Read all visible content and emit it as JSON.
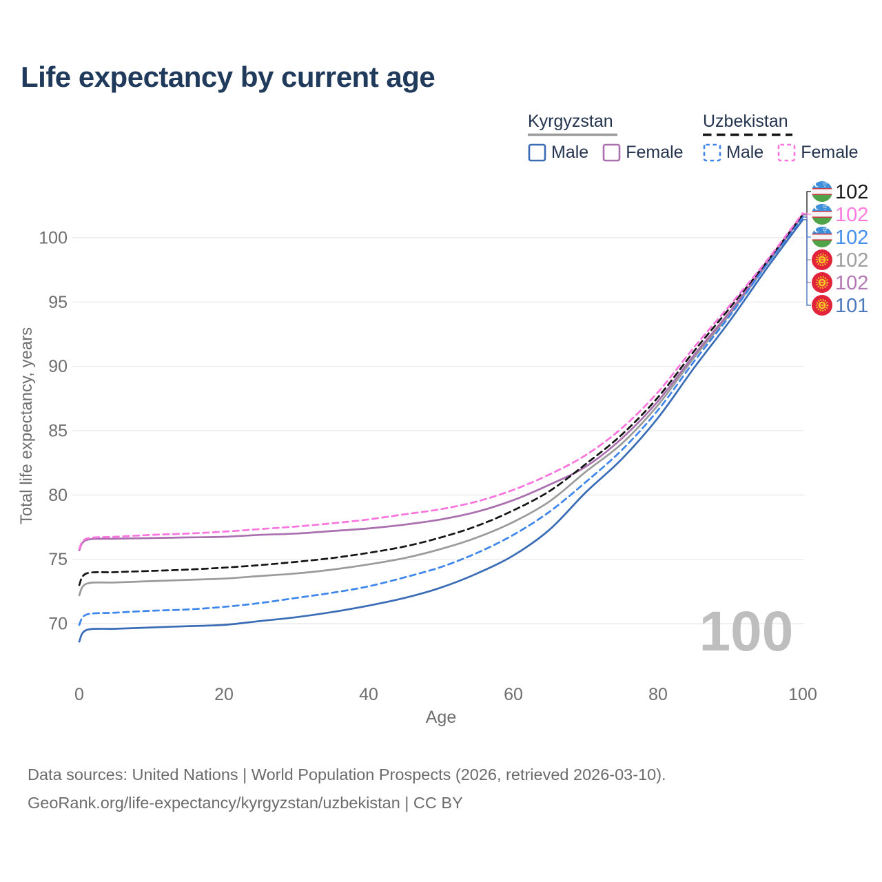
{
  "title": "Life expectancy by current age",
  "legend": {
    "groups": [
      {
        "country": "Kyrgyzstan",
        "line_style": "solid",
        "underline_color": "#9B9B9B",
        "items": [
          {
            "label": "Male",
            "color": "#3A6CB6"
          },
          {
            "label": "Female",
            "color": "#A96FAE"
          }
        ]
      },
      {
        "country": "Uzbekistan",
        "line_style": "dashed",
        "underline_color": "#151515",
        "items": [
          {
            "label": "Male",
            "color": "#3E86EC"
          },
          {
            "label": "Female",
            "color": "#FA73DE"
          }
        ]
      }
    ]
  },
  "watermark": "100",
  "footer": {
    "line1": "Data sources: United Nations | World Population Prospects (2026, retrieved 2026-03-10).",
    "line2": "GeoRank.org/life-expectancy/kyrgyzstan/uzbekistan | CC BY"
  },
  "chart_data": {
    "type": "line",
    "title": "Life expectancy by current age",
    "xlabel": "Age",
    "ylabel": "Total life expectancy, years",
    "xlim": [
      0,
      100
    ],
    "ylim": [
      67,
      103
    ],
    "x_ticks": [
      0,
      20,
      40,
      60,
      80,
      100
    ],
    "y_ticks": [
      70,
      75,
      80,
      85,
      90,
      95,
      100
    ],
    "grid": "horizontal",
    "legend_position": "top-right",
    "x": [
      0,
      1,
      5,
      10,
      15,
      20,
      25,
      30,
      35,
      40,
      45,
      50,
      55,
      60,
      65,
      70,
      75,
      80,
      85,
      90,
      95,
      100
    ],
    "series": [
      {
        "id": "uzbekistan-total",
        "name": "Uzbekistan Total",
        "country": "Uzbekistan",
        "flag": "uz",
        "color": "#141414",
        "dashed": true,
        "end_label": "102",
        "end_label_color": "#1A1A1A",
        "values": [
          73.0,
          73.9,
          74.0,
          74.1,
          74.2,
          74.35,
          74.55,
          74.8,
          75.1,
          75.5,
          76.0,
          76.7,
          77.6,
          78.8,
          80.3,
          82.4,
          84.7,
          87.6,
          91.2,
          94.6,
          98.1,
          101.8
        ]
      },
      {
        "id": "uzbekistan-female",
        "name": "Uzbekistan Female",
        "country": "Uzbekistan",
        "flag": "uz",
        "color": "#FA73DE",
        "dashed": true,
        "end_label": "102",
        "end_label_color": "#FF7BE0",
        "values": [
          75.8,
          76.6,
          76.75,
          76.9,
          77.0,
          77.15,
          77.35,
          77.55,
          77.8,
          78.1,
          78.5,
          78.9,
          79.5,
          80.4,
          81.6,
          83.1,
          85.2,
          88.0,
          91.5,
          94.8,
          98.2,
          101.9
        ]
      },
      {
        "id": "uzbekistan-male",
        "name": "Uzbekistan Male",
        "country": "Uzbekistan",
        "flag": "uz",
        "color": "#3E86EC",
        "dashed": true,
        "end_label": "102",
        "end_label_color": "#4490EA",
        "values": [
          69.9,
          70.7,
          70.85,
          71.0,
          71.1,
          71.3,
          71.6,
          72.0,
          72.4,
          72.9,
          73.6,
          74.4,
          75.5,
          76.9,
          78.7,
          81.0,
          83.5,
          86.6,
          90.4,
          94.0,
          97.9,
          101.6
        ]
      },
      {
        "id": "kyrgyzstan-total",
        "name": "Kyrgyzstan Total",
        "country": "Kyrgyzstan",
        "flag": "kg",
        "color": "#9A9A9A",
        "dashed": false,
        "end_label": "102",
        "end_label_color": "#9E9E9E",
        "values": [
          72.2,
          73.1,
          73.2,
          73.3,
          73.4,
          73.5,
          73.7,
          73.9,
          74.2,
          74.6,
          75.1,
          75.8,
          76.7,
          77.9,
          79.5,
          81.8,
          84.0,
          87.0,
          90.7,
          94.1,
          97.9,
          101.7
        ]
      },
      {
        "id": "kyrgyzstan-female",
        "name": "Kyrgyzstan Female",
        "country": "Kyrgyzstan",
        "flag": "kg",
        "color": "#A96FAE",
        "dashed": false,
        "end_label": "102",
        "end_label_color": "#B478B6",
        "values": [
          75.7,
          76.5,
          76.6,
          76.65,
          76.7,
          76.75,
          76.9,
          77.0,
          77.2,
          77.4,
          77.7,
          78.1,
          78.7,
          79.6,
          80.8,
          82.2,
          84.4,
          87.3,
          90.9,
          94.3,
          98.0,
          101.8
        ]
      },
      {
        "id": "kyrgyzstan-male",
        "name": "Kyrgyzstan Male",
        "country": "Kyrgyzstan",
        "flag": "kg",
        "color": "#3A6CB6",
        "dashed": false,
        "end_label": "101",
        "end_label_color": "#4D79BD",
        "values": [
          68.6,
          69.5,
          69.6,
          69.7,
          69.8,
          69.9,
          70.2,
          70.5,
          70.9,
          71.4,
          72.0,
          72.8,
          73.9,
          75.3,
          77.3,
          80.2,
          82.8,
          86.0,
          89.9,
          93.6,
          97.6,
          101.4
        ]
      }
    ]
  }
}
